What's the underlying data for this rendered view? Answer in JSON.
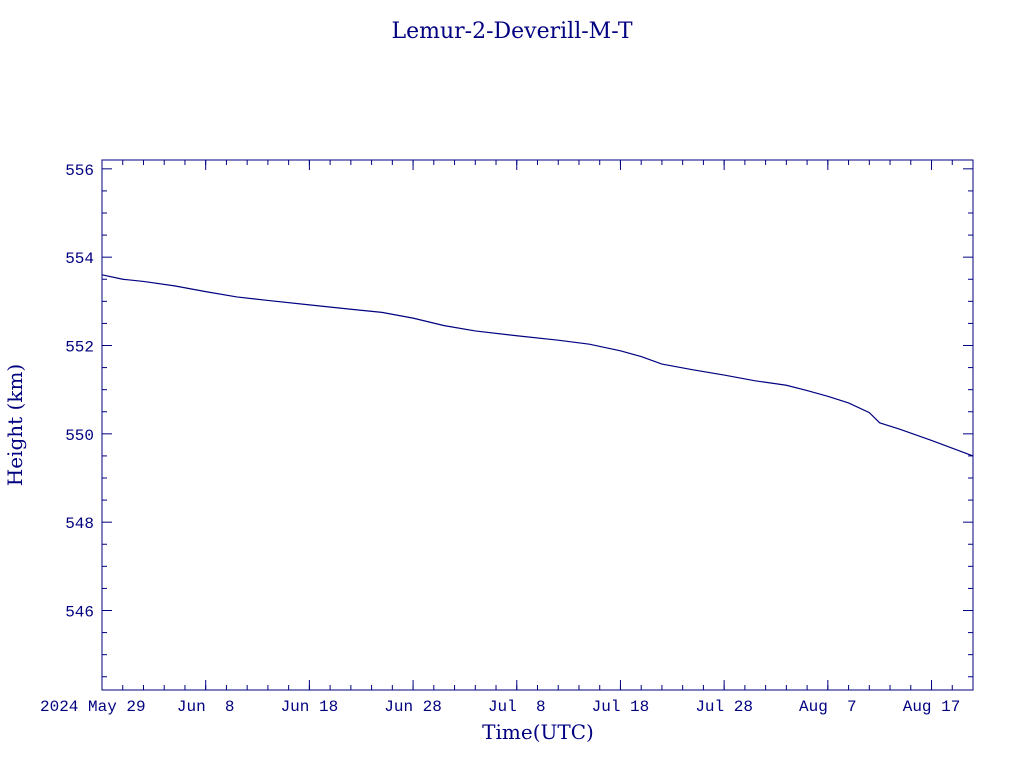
{
  "chart_data": {
    "type": "line",
    "title": "Lemur-2-Deverill-M-T",
    "xlabel": "Time(UTC)",
    "ylabel": "Height (km)",
    "ylim": [
      544.2,
      556.2
    ],
    "xlim": [
      "2024-05-29",
      "2024-08-21"
    ],
    "y_ticks": [
      546,
      548,
      550,
      552,
      554,
      556
    ],
    "x_ticks": [
      {
        "label": "2024 May 29",
        "date": "2024-05-29"
      },
      {
        "label": "Jun  8",
        "date": "2024-06-08"
      },
      {
        "label": "Jun 18",
        "date": "2024-06-18"
      },
      {
        "label": "Jun 28",
        "date": "2024-06-28"
      },
      {
        "label": "Jul  8",
        "date": "2024-07-08"
      },
      {
        "label": "Jul 18",
        "date": "2024-07-18"
      },
      {
        "label": "Jul 28",
        "date": "2024-07-28"
      },
      {
        "label": "Aug  7",
        "date": "2024-08-07"
      },
      {
        "label": "Aug 17",
        "date": "2024-08-17"
      }
    ],
    "grid": false,
    "color": "#000080",
    "series": [
      {
        "x": [
          "2024-05-29",
          "2024-05-31",
          "2024-06-02",
          "2024-06-05",
          "2024-06-08",
          "2024-06-11",
          "2024-06-14",
          "2024-06-18",
          "2024-06-22",
          "2024-06-25",
          "2024-06-28",
          "2024-07-01",
          "2024-07-04",
          "2024-07-08",
          "2024-07-12",
          "2024-07-15",
          "2024-07-18",
          "2024-07-20",
          "2024-07-22",
          "2024-07-25",
          "2024-07-28",
          "2024-07-31",
          "2024-08-03",
          "2024-08-05",
          "2024-08-07",
          "2024-08-09",
          "2024-08-11",
          "2024-08-12",
          "2024-08-14",
          "2024-08-17",
          "2024-08-21"
        ],
        "y": [
          553.6,
          553.5,
          553.45,
          553.35,
          553.22,
          553.1,
          553.02,
          552.92,
          552.82,
          552.75,
          552.62,
          552.45,
          552.33,
          552.22,
          552.12,
          552.03,
          551.88,
          551.75,
          551.58,
          551.45,
          551.33,
          551.2,
          551.1,
          550.98,
          550.85,
          550.7,
          550.48,
          550.25,
          550.1,
          549.85,
          549.5
        ]
      }
    ]
  }
}
